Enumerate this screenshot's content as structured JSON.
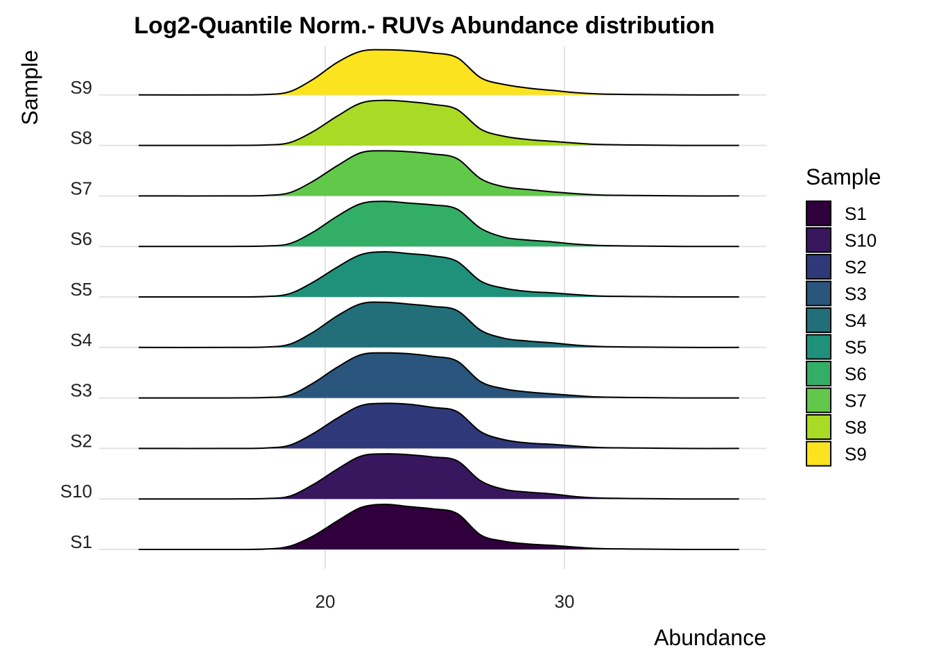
{
  "chart_data": {
    "type": "ridgeline",
    "title": "Log2-Quantile Norm.- RUVs Abundance distribution",
    "xlabel": "Abundance",
    "ylabel": "Sample",
    "x_ticks": [
      20,
      30
    ],
    "xlim": [
      12.2,
      37.3
    ],
    "grid": true,
    "legend": {
      "title": "Sample",
      "position": "right",
      "entries": [
        "S1",
        "S10",
        "S2",
        "S3",
        "S4",
        "S5",
        "S6",
        "S7",
        "S8",
        "S9"
      ]
    },
    "density_x": [
      12.2,
      16,
      17.5,
      18.5,
      19.5,
      20.5,
      21.5,
      22.5,
      23.5,
      24.5,
      25.5,
      26.5,
      27.5,
      28.5,
      29.5,
      30.5,
      31.5,
      33,
      35,
      37.3
    ],
    "series": [
      {
        "name": "S1",
        "color": "#30003C",
        "density": [
          0,
          0.0,
          0.01,
          0.07,
          0.3,
          0.63,
          0.93,
          1.0,
          0.95,
          0.9,
          0.8,
          0.32,
          0.18,
          0.12,
          0.09,
          0.05,
          0.02,
          0.01,
          0,
          0
        ]
      },
      {
        "name": "S10",
        "color": "#38175F",
        "density": [
          0,
          0.0,
          0.01,
          0.06,
          0.32,
          0.66,
          0.95,
          1.0,
          0.98,
          0.93,
          0.85,
          0.4,
          0.21,
          0.15,
          0.11,
          0.05,
          0.02,
          0.01,
          0,
          0
        ]
      },
      {
        "name": "S2",
        "color": "#2F397A",
        "density": [
          0,
          0.0,
          0.01,
          0.07,
          0.33,
          0.67,
          0.95,
          1.0,
          0.98,
          0.91,
          0.82,
          0.37,
          0.19,
          0.12,
          0.09,
          0.05,
          0.02,
          0.01,
          0,
          0
        ]
      },
      {
        "name": "S3",
        "color": "#2A557C",
        "density": [
          0,
          0.0,
          0.01,
          0.06,
          0.33,
          0.68,
          0.96,
          1.0,
          0.98,
          0.92,
          0.82,
          0.36,
          0.2,
          0.13,
          0.09,
          0.05,
          0.02,
          0.01,
          0,
          0
        ]
      },
      {
        "name": "S4",
        "color": "#226F7A",
        "density": [
          0,
          0.0,
          0.01,
          0.07,
          0.34,
          0.7,
          0.97,
          1.0,
          0.96,
          0.91,
          0.82,
          0.38,
          0.2,
          0.14,
          0.1,
          0.05,
          0.02,
          0.01,
          0,
          0
        ]
      },
      {
        "name": "S5",
        "color": "#1F917B",
        "density": [
          0,
          0.0,
          0.01,
          0.07,
          0.33,
          0.66,
          0.94,
          1.0,
          0.96,
          0.91,
          0.79,
          0.35,
          0.19,
          0.12,
          0.09,
          0.05,
          0.02,
          0.01,
          0,
          0
        ]
      },
      {
        "name": "S6",
        "color": "#33AE67",
        "density": [
          0,
          0.0,
          0.01,
          0.06,
          0.32,
          0.67,
          0.95,
          1.0,
          0.96,
          0.92,
          0.83,
          0.4,
          0.2,
          0.14,
          0.1,
          0.05,
          0.02,
          0.01,
          0,
          0
        ]
      },
      {
        "name": "S7",
        "color": "#62C84A",
        "density": [
          0,
          0.0,
          0.01,
          0.07,
          0.33,
          0.67,
          0.96,
          1.0,
          0.98,
          0.93,
          0.83,
          0.38,
          0.2,
          0.14,
          0.09,
          0.05,
          0.02,
          0.01,
          0,
          0
        ]
      },
      {
        "name": "S8",
        "color": "#A8DA26",
        "density": [
          0,
          0.0,
          0.01,
          0.06,
          0.31,
          0.65,
          0.94,
          1.0,
          0.97,
          0.91,
          0.8,
          0.36,
          0.2,
          0.13,
          0.09,
          0.05,
          0.02,
          0.01,
          0,
          0
        ]
      },
      {
        "name": "S9",
        "color": "#FBE31F",
        "density": [
          0,
          0.0,
          0.01,
          0.07,
          0.35,
          0.72,
          0.97,
          1.0,
          0.98,
          0.93,
          0.83,
          0.38,
          0.23,
          0.15,
          0.1,
          0.05,
          0.02,
          0.01,
          0,
          0
        ]
      }
    ]
  }
}
